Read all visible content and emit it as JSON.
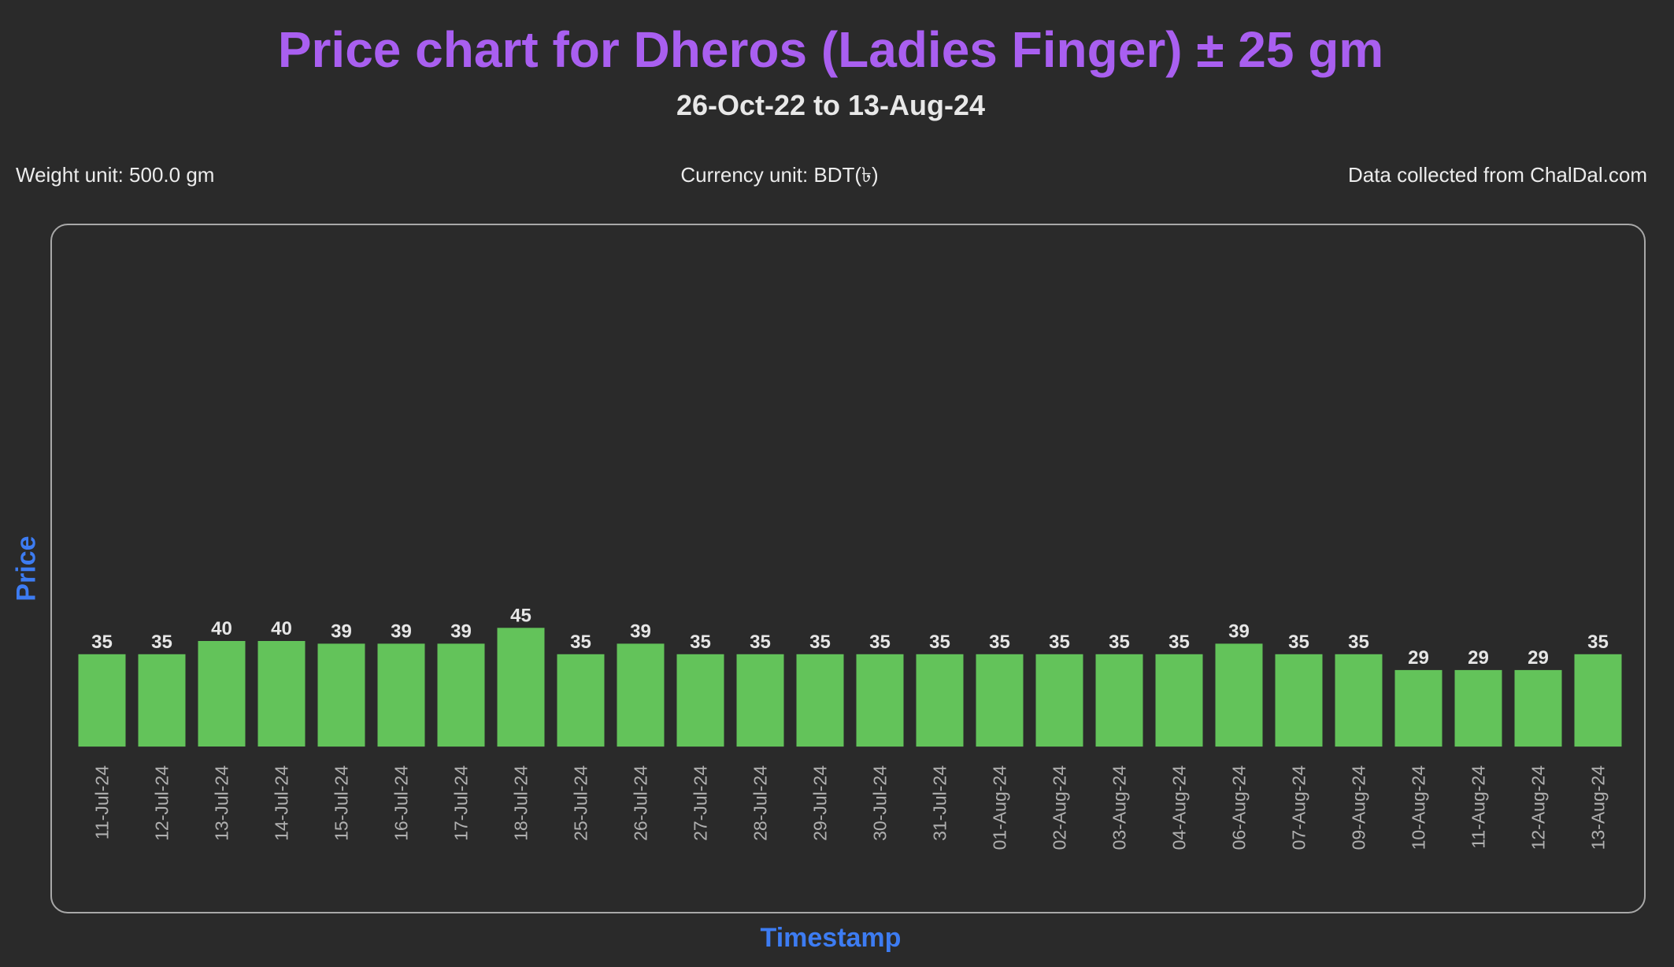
{
  "header": {
    "title": "Price chart for Dheros (Ladies Finger) ± 25 gm",
    "subtitle": "26-Oct-22 to 13-Aug-24"
  },
  "info": {
    "weight_unit": "Weight unit: 500.0 gm",
    "currency_unit": "Currency unit: BDT(৳)",
    "source": "Data collected from ChalDal.com"
  },
  "colors": {
    "bar": "#63c35a",
    "title": "#a95ff0",
    "axis_label": "#3d7cf2",
    "background": "#2a2a2a",
    "value_label": "#e6e6e6",
    "tick_label": "#b0b0b0"
  },
  "chart_data": {
    "type": "bar",
    "title": "Price chart for Dheros (Ladies Finger) ± 25 gm",
    "xlabel": "Timestamp",
    "ylabel": "Price",
    "ylim": [
      0,
      100
    ],
    "grid": false,
    "legend": "none",
    "categories": [
      "11-Jul-24",
      "12-Jul-24",
      "13-Jul-24",
      "14-Jul-24",
      "15-Jul-24",
      "16-Jul-24",
      "17-Jul-24",
      "18-Jul-24",
      "25-Jul-24",
      "26-Jul-24",
      "27-Jul-24",
      "28-Jul-24",
      "29-Jul-24",
      "30-Jul-24",
      "31-Jul-24",
      "01-Aug-24",
      "02-Aug-24",
      "03-Aug-24",
      "04-Aug-24",
      "06-Aug-24",
      "07-Aug-24",
      "09-Aug-24",
      "10-Aug-24",
      "11-Aug-24",
      "12-Aug-24",
      "13-Aug-24"
    ],
    "values": [
      35,
      35,
      40,
      40,
      39,
      39,
      39,
      45,
      35,
      39,
      35,
      35,
      35,
      35,
      35,
      35,
      35,
      35,
      35,
      39,
      35,
      35,
      29,
      29,
      29,
      35
    ]
  }
}
